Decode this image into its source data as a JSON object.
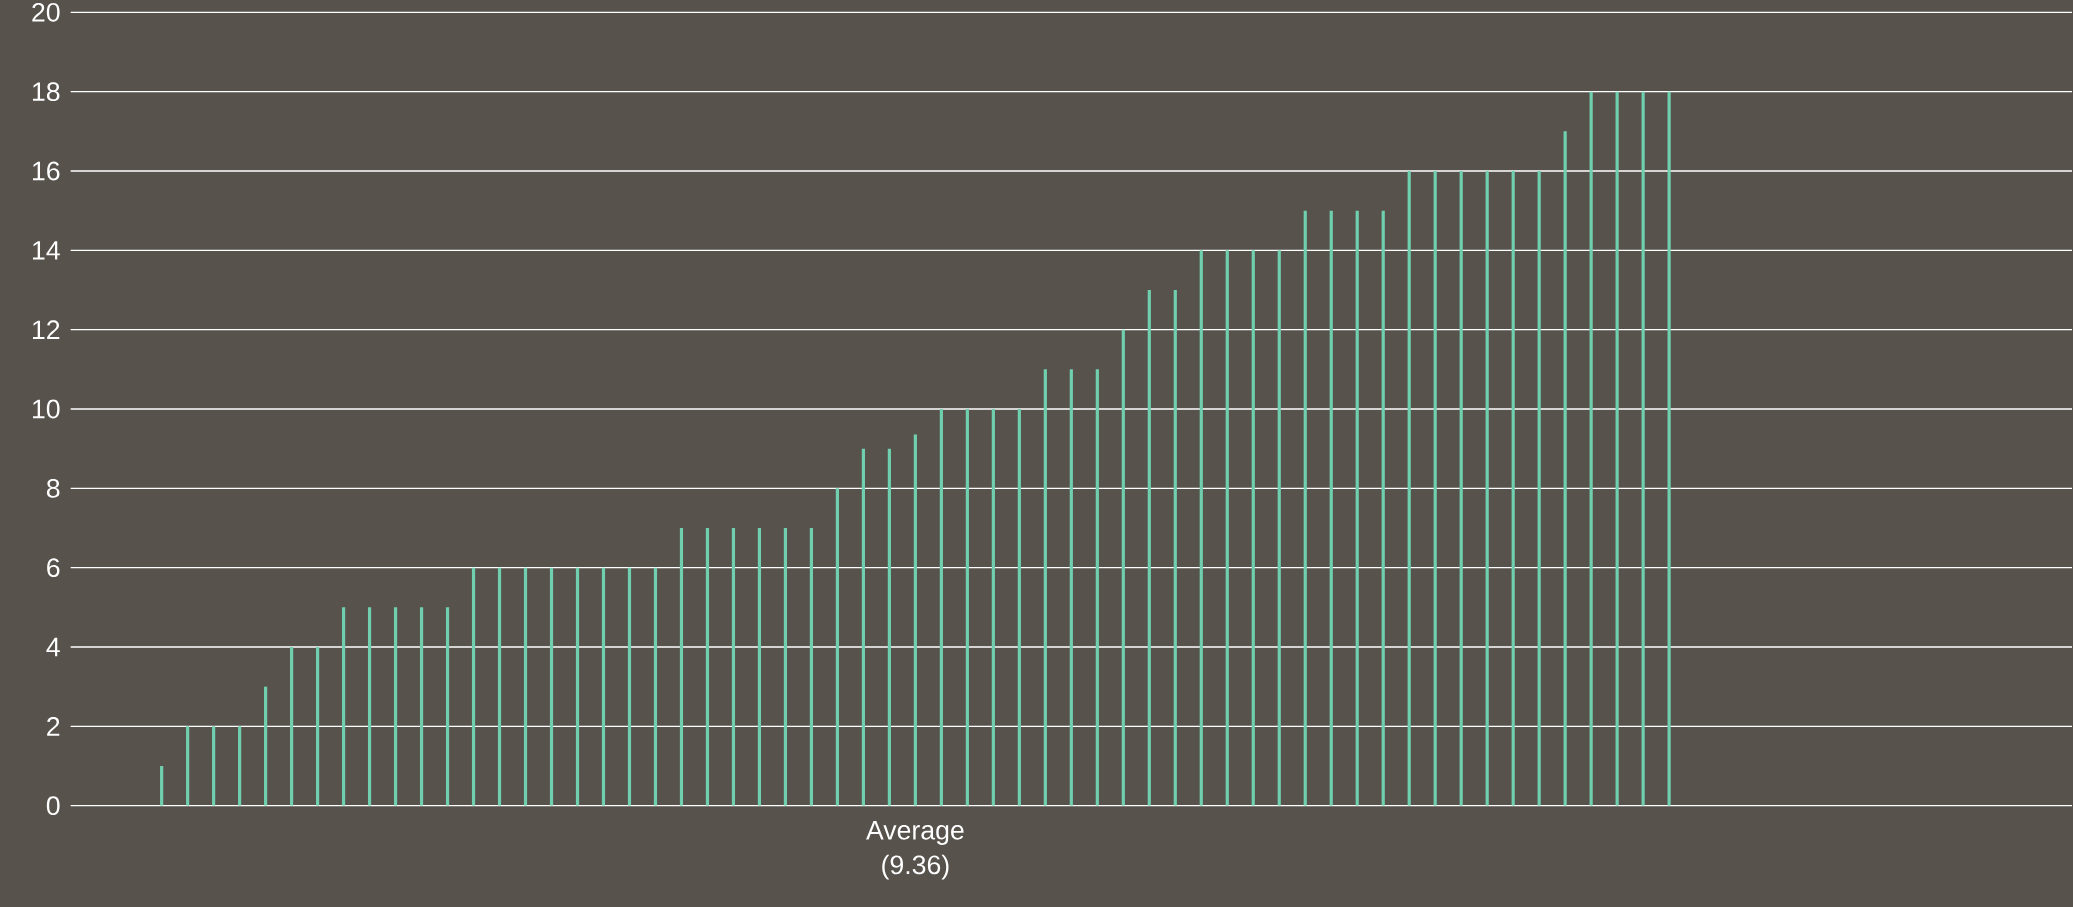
{
  "chart_data": {
    "type": "bar",
    "categories": [
      null,
      null,
      null,
      null,
      null,
      null,
      null,
      null,
      null,
      null,
      null,
      null,
      null,
      null,
      null,
      null,
      null,
      null,
      null,
      null,
      null,
      null,
      null,
      null,
      null,
      null,
      null,
      null,
      null,
      null,
      null,
      null,
      "Average (9.36)",
      null,
      null,
      null,
      null,
      null,
      null,
      null,
      null,
      null,
      null,
      null,
      null,
      null,
      null,
      null,
      null,
      null,
      null,
      null,
      null,
      null,
      null,
      null,
      null,
      null,
      null,
      null,
      null,
      null,
      null,
      null,
      null,
      null,
      null,
      null,
      null,
      null,
      null,
      null,
      null,
      null,
      null,
      null,
      null
    ],
    "values": [
      null,
      null,
      null,
      1,
      2,
      2,
      2,
      3,
      4,
      4,
      5,
      5,
      5,
      5,
      5,
      6,
      6,
      6,
      6,
      6,
      6,
      6,
      6,
      7,
      7,
      7,
      7,
      7,
      7,
      8,
      9,
      9,
      9.36,
      10,
      10,
      10,
      10,
      11,
      11,
      11,
      12,
      13,
      13,
      14,
      14,
      14,
      14,
      15,
      15,
      15,
      15,
      16,
      16,
      16,
      16,
      16,
      16,
      17,
      18,
      18,
      18,
      18,
      null,
      null,
      null,
      null,
      null,
      null,
      null,
      null,
      null,
      null,
      null,
      null,
      null,
      null,
      null
    ],
    "color": "#6fcfae",
    "ylim": [
      0,
      20
    ],
    "yticks": [
      0,
      2,
      4,
      6,
      8,
      10,
      12,
      14,
      16,
      18,
      20
    ],
    "grid": "y"
  }
}
